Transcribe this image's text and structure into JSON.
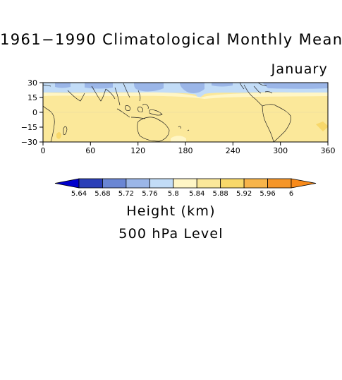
{
  "title": "1961−1990 Climatological Monthly Mean",
  "month": "January",
  "map": {
    "lat_ticks": [
      "30",
      "15",
      "0",
      "−15",
      "−30"
    ],
    "lon_ticks": [
      "0",
      "60",
      "120",
      "180",
      "240",
      "300",
      "360"
    ],
    "lat_range": [
      -30,
      30
    ],
    "lon_range": [
      0,
      360
    ]
  },
  "colorbar": {
    "labels": [
      "5.64",
      "5.68",
      "5.72",
      "5.76",
      "5.8",
      "5.84",
      "5.88",
      "5.92",
      "5.96",
      "6"
    ],
    "colors": [
      "#0000cc",
      "#2b3fb8",
      "#6a86d4",
      "#9bb6e8",
      "#c2dcf7",
      "#fff6c6",
      "#fbe89a",
      "#f8d86a",
      "#f7b44a",
      "#f5962a",
      "#f88a1a"
    ]
  },
  "variable_label": "Height (km)",
  "level_label": "500 hPa Level"
}
